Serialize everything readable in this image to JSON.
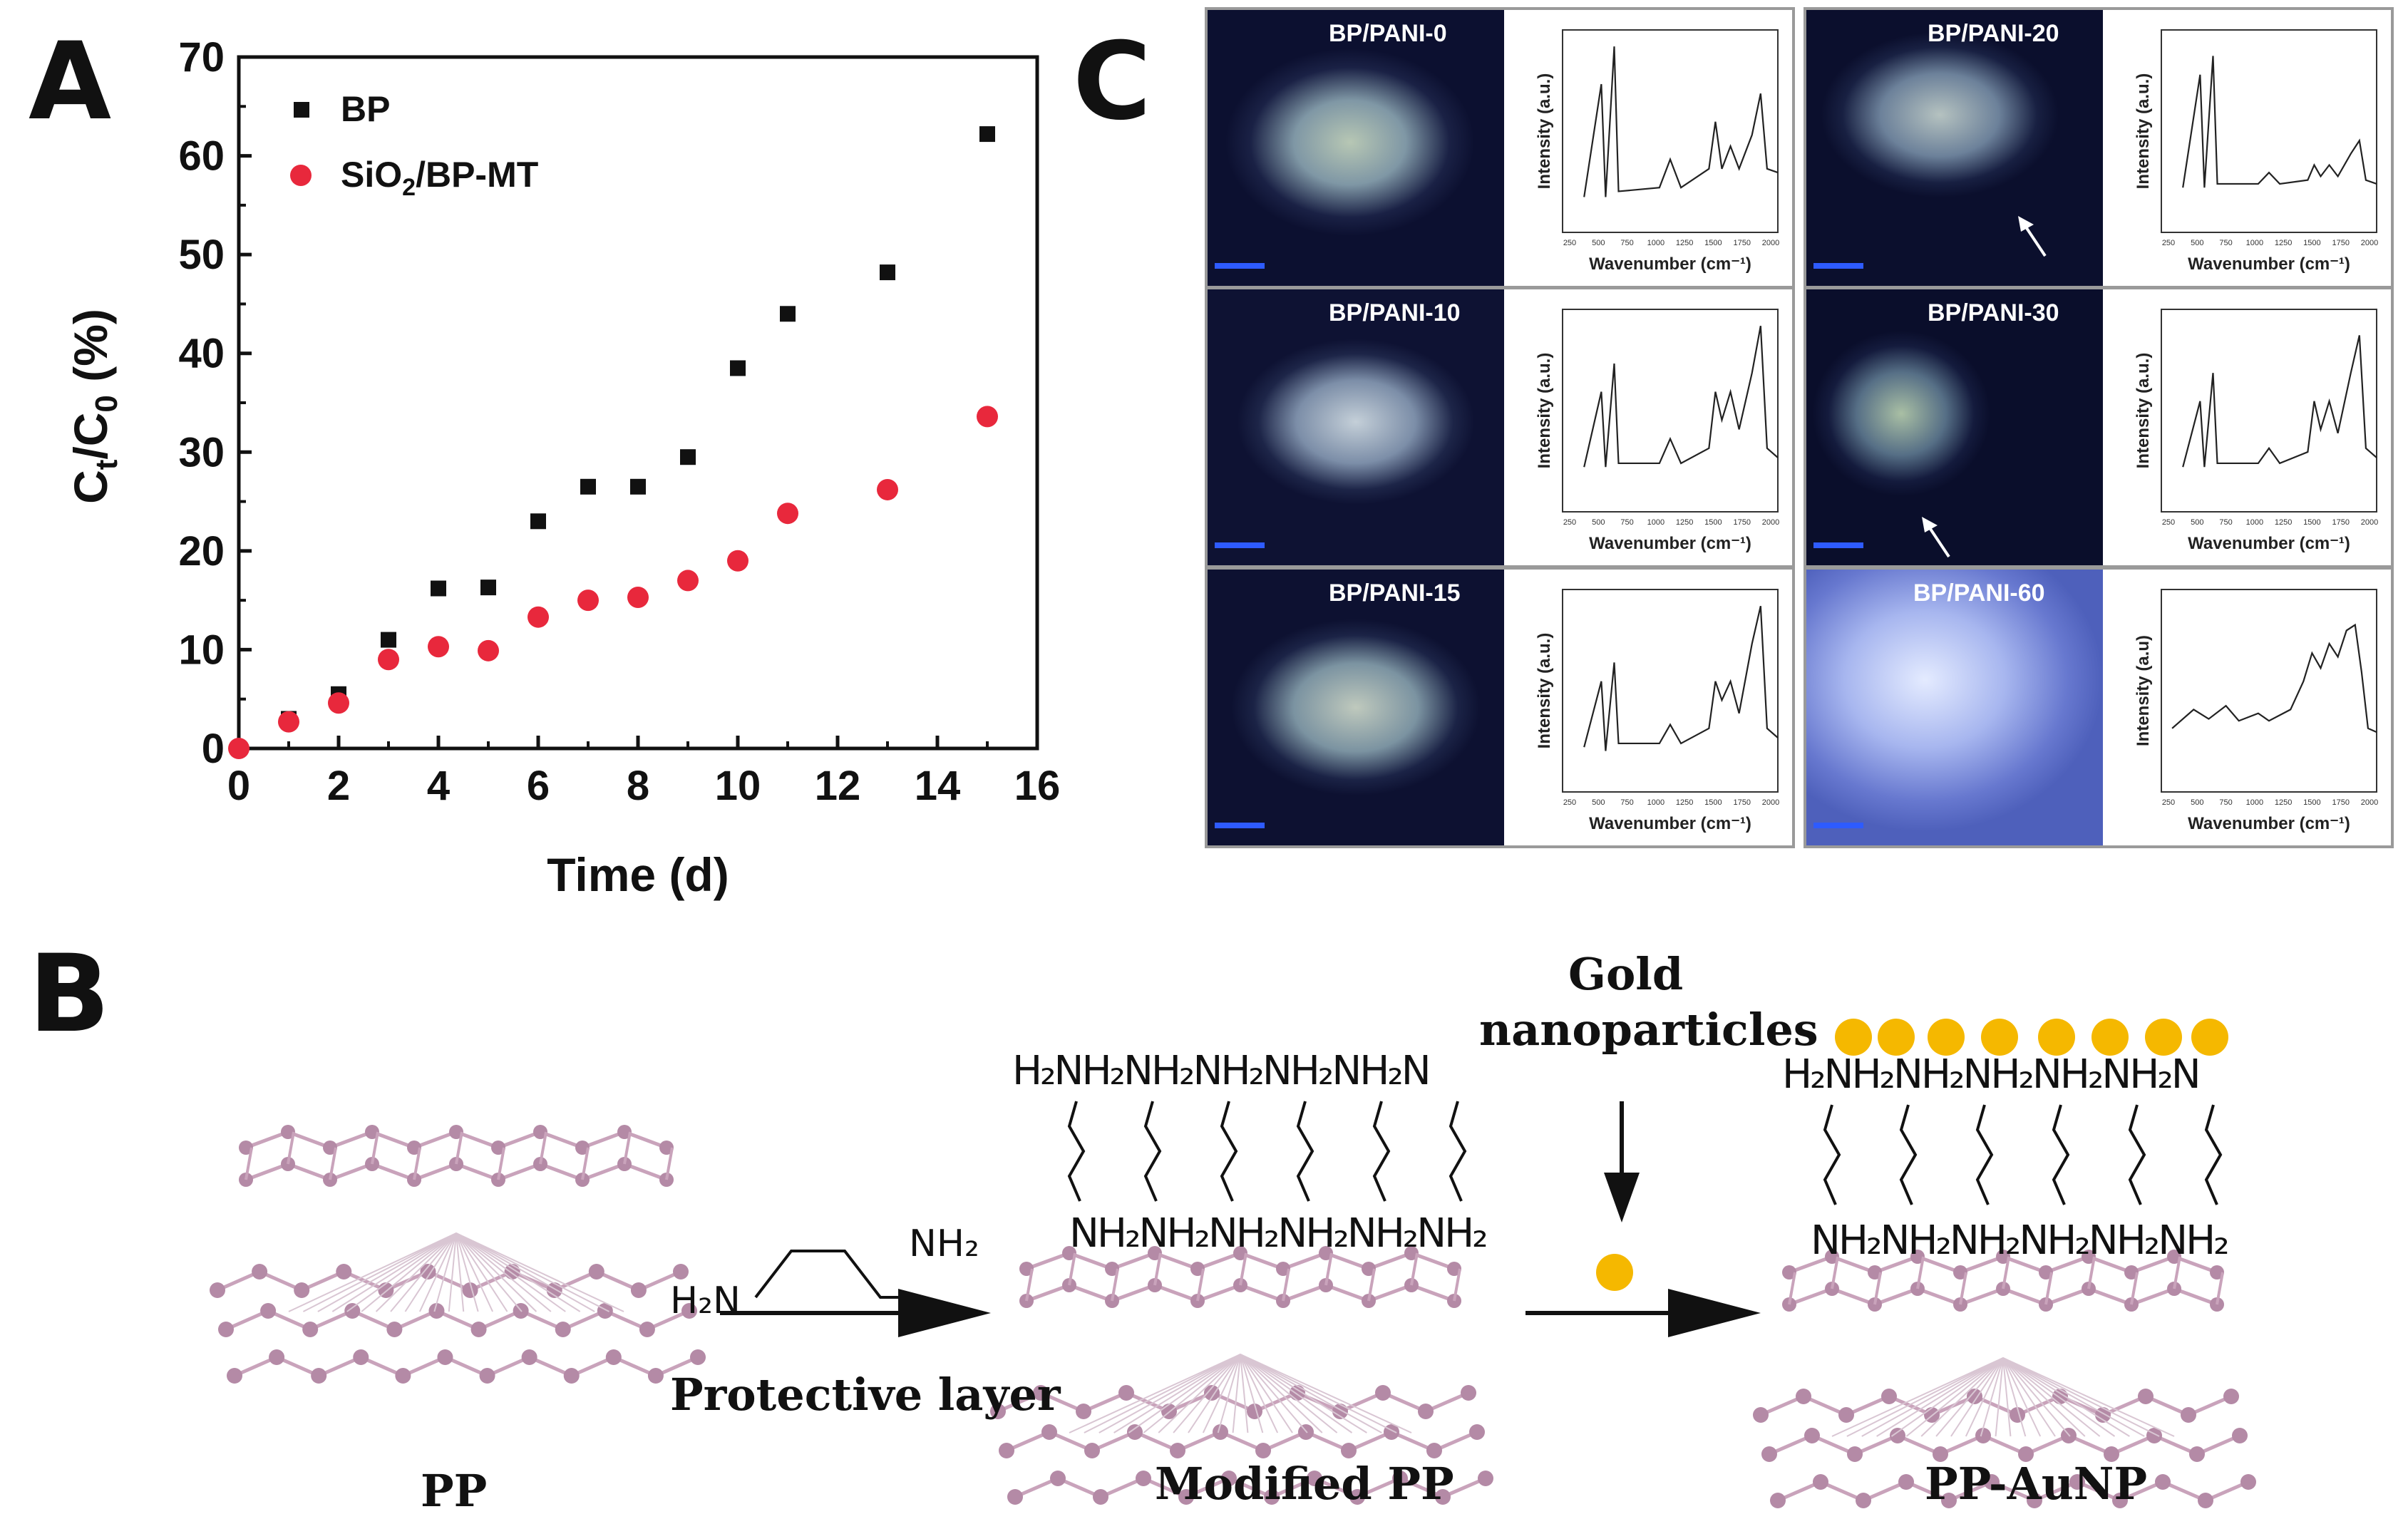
{
  "panel_labels": {
    "a": "A",
    "b": "B",
    "c": "C"
  },
  "chart_data": {
    "type": "scatter",
    "title": "",
    "xlabel": "Time (d)",
    "ylabel": "Ct/C0 (%)",
    "xlim": [
      0,
      16
    ],
    "ylim": [
      0,
      70
    ],
    "xticks": [
      0,
      2,
      4,
      6,
      8,
      10,
      12,
      14,
      16
    ],
    "yticks": [
      0,
      10,
      20,
      30,
      40,
      50,
      60,
      70
    ],
    "legend_position": "top-left",
    "series": [
      {
        "name": "BP",
        "marker": "square",
        "color": "#111111",
        "x": [
          1,
          2,
          3,
          4,
          5,
          6,
          7,
          8,
          9,
          10,
          11,
          13,
          15
        ],
        "y": [
          3,
          5.5,
          11,
          16.2,
          16.3,
          23,
          26.5,
          26.5,
          29.5,
          38.5,
          44,
          48.2,
          62.2
        ]
      },
      {
        "name": "SiO2/BP-MT",
        "marker": "circle",
        "color": "#e8283c",
        "x": [
          0,
          1,
          2,
          3,
          4,
          5,
          6,
          7,
          8,
          9,
          10,
          11,
          13,
          15
        ],
        "y": [
          0,
          2.7,
          4.6,
          9,
          10.3,
          9.9,
          13.3,
          15,
          15.3,
          17,
          19,
          23.8,
          26.2,
          33.6
        ]
      }
    ]
  },
  "panel_c": {
    "xlabel": "Wavenumber (cm⁻¹)",
    "ylabel": "Intensity (a.u.)",
    "ylabel_alt": "Intensity (a.u)",
    "xticks": [
      "250",
      "500",
      "750",
      "1000",
      "1250",
      "1500",
      "1750",
      "2000"
    ],
    "samples": [
      "BP/PANI-0",
      "BP/PANI-10",
      "BP/PANI-15",
      "BP/PANI-20",
      "BP/PANI-30",
      "BP/PANI-60"
    ]
  },
  "panel_b": {
    "pp": "PP",
    "modified_pp": "Modified PP",
    "pp_aunp": "PP-AuNP",
    "protective_layer": "Protective layer",
    "gold_line1": "Gold",
    "gold_line2": "nanoparticles",
    "amine_left": "H₂N",
    "amine_right": "NH₂",
    "top_amines": "H₂NH₂NH₂NH₂NH₂NH₂N",
    "bottom_amines": "NH₂NH₂NH₂NH₂NH₂NH₂"
  },
  "colors": {
    "gold": "#f5b800",
    "chain": "#c9a3bb",
    "atom": "#b48aa6",
    "bp_marker": "#111111",
    "mt_marker": "#e8283c"
  }
}
